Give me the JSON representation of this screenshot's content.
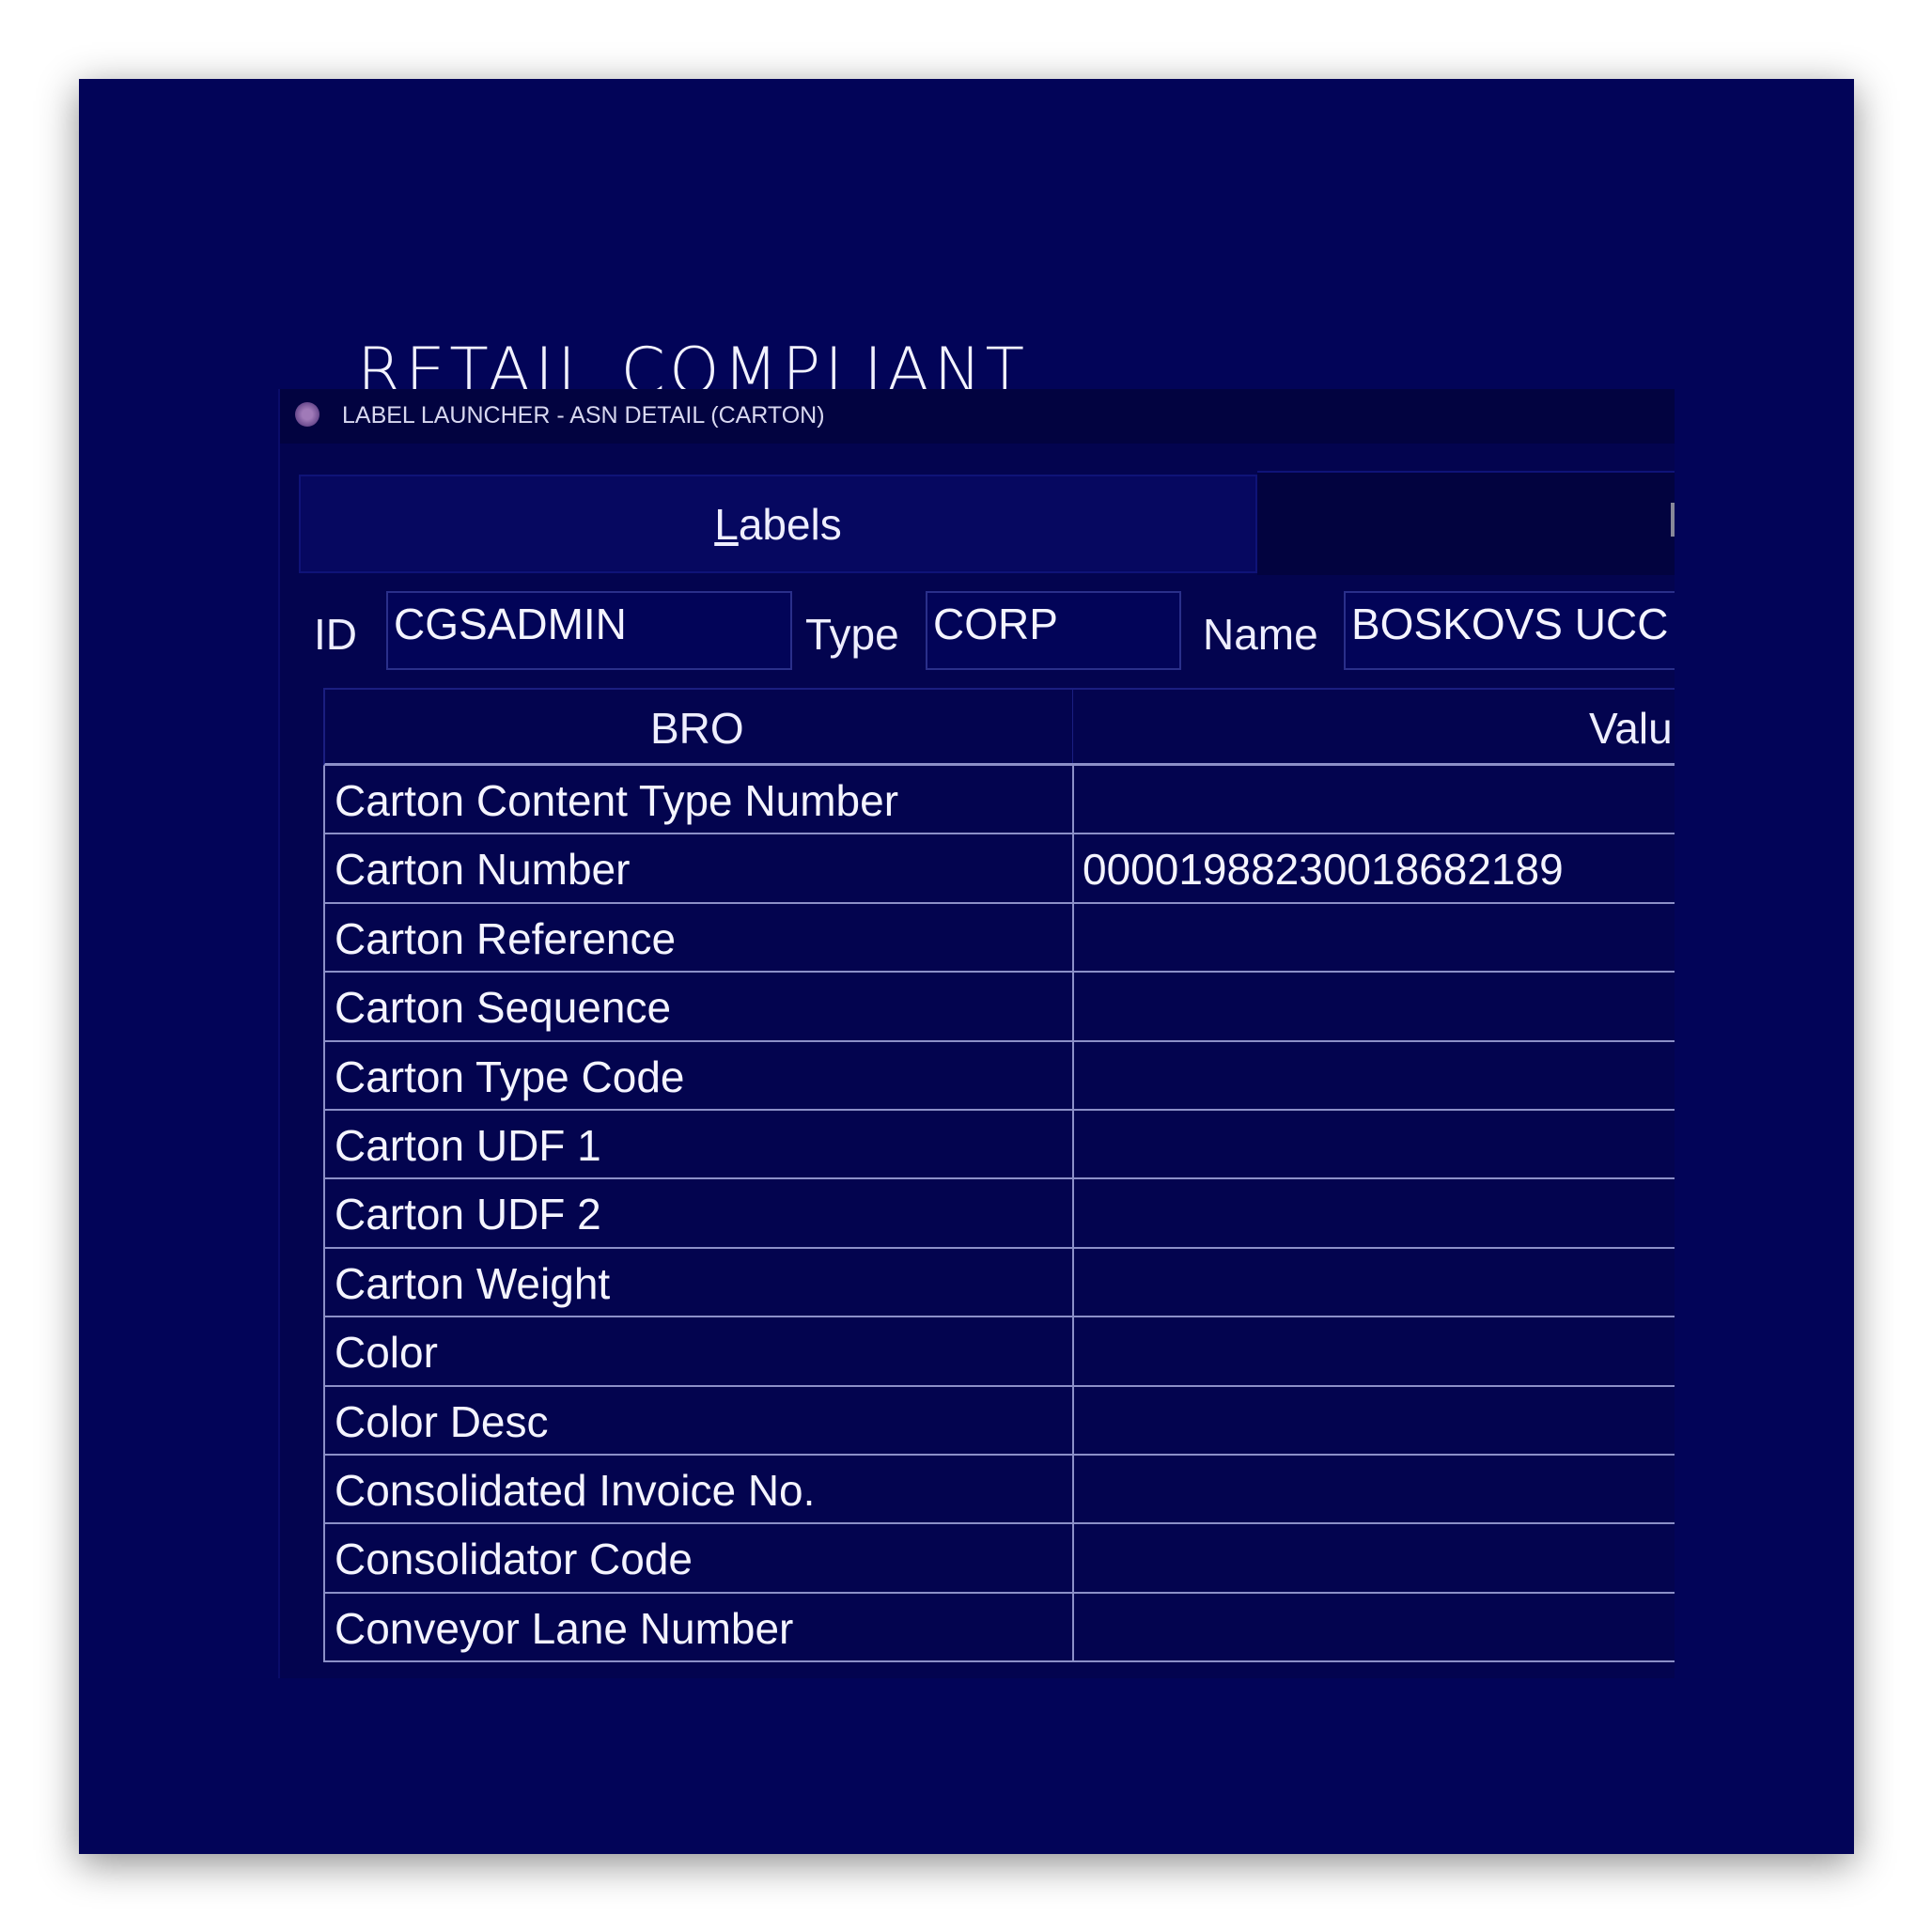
{
  "page_title": "RETAIL COMPLIANT",
  "window": {
    "title": "LABEL LAUNCHER - ASN DETAIL (CARTON)",
    "tabs": [
      {
        "label": "Labels",
        "mnemonic": "L",
        "rest": "abels"
      }
    ]
  },
  "fields": {
    "id_label": "ID",
    "id_value": "CGSADMIN",
    "type_label": "Type",
    "type_value": "CORP",
    "name_label": "Name",
    "name_value": "BOSKOVS UCC"
  },
  "table": {
    "columns": [
      "BRO",
      "Valu"
    ],
    "rows": [
      {
        "bro": "Carton Content Type Number",
        "value": ""
      },
      {
        "bro": "Carton Number",
        "value": "00001988230018682189"
      },
      {
        "bro": "Carton Reference",
        "value": ""
      },
      {
        "bro": "Carton Sequence",
        "value": ""
      },
      {
        "bro": "Carton Type Code",
        "value": ""
      },
      {
        "bro": "Carton UDF 1",
        "value": ""
      },
      {
        "bro": "Carton UDF 2",
        "value": ""
      },
      {
        "bro": "Carton Weight",
        "value": ""
      },
      {
        "bro": "Color",
        "value": ""
      },
      {
        "bro": "Color Desc",
        "value": ""
      },
      {
        "bro": "Consolidated Invoice No.",
        "value": ""
      },
      {
        "bro": "Consolidator Code",
        "value": ""
      },
      {
        "bro": "Conveyor Lane Number",
        "value": ""
      }
    ]
  }
}
